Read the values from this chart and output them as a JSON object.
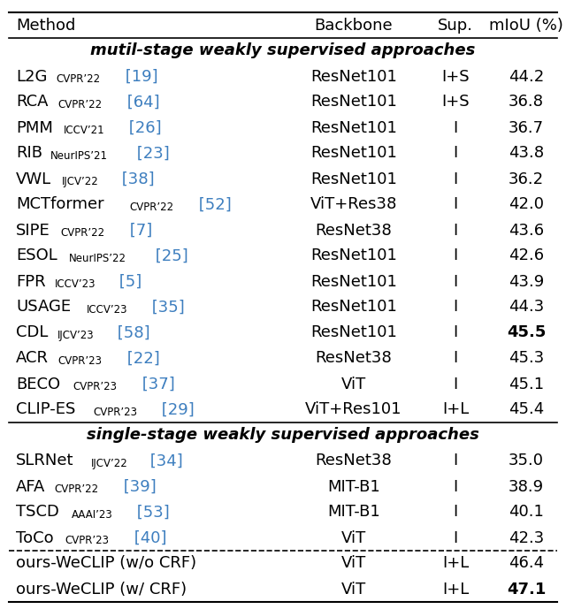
{
  "header": [
    "Method",
    "Backbone",
    "Sup.",
    "mIoU (%)"
  ],
  "section1_label": "mutil-stage weakly supervised approaches",
  "section2_label": "single-stage weakly supervised approaches",
  "rows_section1": [
    {
      "method": "L2G",
      "sub": "CVPR’22",
      "ref": "[19]",
      "backbone": "ResNet101",
      "sup": "I+S",
      "miou": "44.2",
      "bold": false
    },
    {
      "method": "RCA",
      "sub": "CVPR’22",
      "ref": "[64]",
      "backbone": "ResNet101",
      "sup": "I+S",
      "miou": "36.8",
      "bold": false
    },
    {
      "method": "PMM",
      "sub": "ICCV’21",
      "ref": "[26]",
      "backbone": "ResNet101",
      "sup": "I",
      "miou": "36.7",
      "bold": false
    },
    {
      "method": "RIB",
      "sub": "NeurIPS’21",
      "ref": "[23]",
      "backbone": "ResNet101",
      "sup": "I",
      "miou": "43.8",
      "bold": false
    },
    {
      "method": "VWL",
      "sub": "IJCV’22",
      "ref": "[38]",
      "backbone": "ResNet101",
      "sup": "I",
      "miou": "36.2",
      "bold": false
    },
    {
      "method": "MCTformer",
      "sub": "CVPR’22",
      "ref": "[52]",
      "backbone": "ViT+Res38",
      "sup": "I",
      "miou": "42.0",
      "bold": false
    },
    {
      "method": "SIPE",
      "sub": "CVPR’22",
      "ref": "[7]",
      "backbone": "ResNet38",
      "sup": "I",
      "miou": "43.6",
      "bold": false
    },
    {
      "method": "ESOL",
      "sub": "NeurIPS’22",
      "ref": "[25]",
      "backbone": "ResNet101",
      "sup": "I",
      "miou": "42.6",
      "bold": false
    },
    {
      "method": "FPR",
      "sub": "ICCV’23",
      "ref": "[5]",
      "backbone": "ResNet101",
      "sup": "I",
      "miou": "43.9",
      "bold": false
    },
    {
      "method": "USAGE",
      "sub": "ICCV’23",
      "ref": "[35]",
      "backbone": "ResNet101",
      "sup": "I",
      "miou": "44.3",
      "bold": false
    },
    {
      "method": "CDL",
      "sub": "IJCV’23",
      "ref": "[58]",
      "backbone": "ResNet101",
      "sup": "I",
      "miou": "45.5",
      "bold": true
    },
    {
      "method": "ACR",
      "sub": "CVPR’23",
      "ref": "[22]",
      "backbone": "ResNet38",
      "sup": "I",
      "miou": "45.3",
      "bold": false
    },
    {
      "method": "BECO",
      "sub": "CVPR’23",
      "ref": "[37]",
      "backbone": "ViT",
      "sup": "I",
      "miou": "45.1",
      "bold": false
    },
    {
      "method": "CLIP-ES",
      "sub": "CVPR’23",
      "ref": "[29]",
      "backbone": "ViT+Res101",
      "sup": "I+L",
      "miou": "45.4",
      "bold": false
    }
  ],
  "rows_section2": [
    {
      "method": "SLRNet",
      "sub": "IJCV’22",
      "ref": "[34]",
      "backbone": "ResNet38",
      "sup": "I",
      "miou": "35.0",
      "bold": false
    },
    {
      "method": "AFA",
      "sub": "CVPR’22",
      "ref": "[39]",
      "backbone": "MIT-B1",
      "sup": "I",
      "miou": "38.9",
      "bold": false
    },
    {
      "method": "TSCD",
      "sub": "AAAI’23",
      "ref": "[53]",
      "backbone": "MIT-B1",
      "sup": "I",
      "miou": "40.1",
      "bold": false
    },
    {
      "method": "ToCo",
      "sub": "CVPR’23",
      "ref": "[40]",
      "backbone": "ViT",
      "sup": "I",
      "miou": "42.3",
      "bold": false
    }
  ],
  "rows_ours": [
    {
      "method": "ours-WeCLIP (w/o CRF)",
      "backbone": "ViT",
      "sup": "I+L",
      "miou": "46.4",
      "bold": false
    },
    {
      "method": "ours-WeCLIP (w/ CRF)",
      "backbone": "ViT",
      "sup": "I+L",
      "miou": "47.1",
      "bold": true
    }
  ],
  "blue_color": "#3d7ebf",
  "text_color": "#000000",
  "bg_color": "#ffffff",
  "fontsize": 13,
  "sub_fontsize": 8.5
}
